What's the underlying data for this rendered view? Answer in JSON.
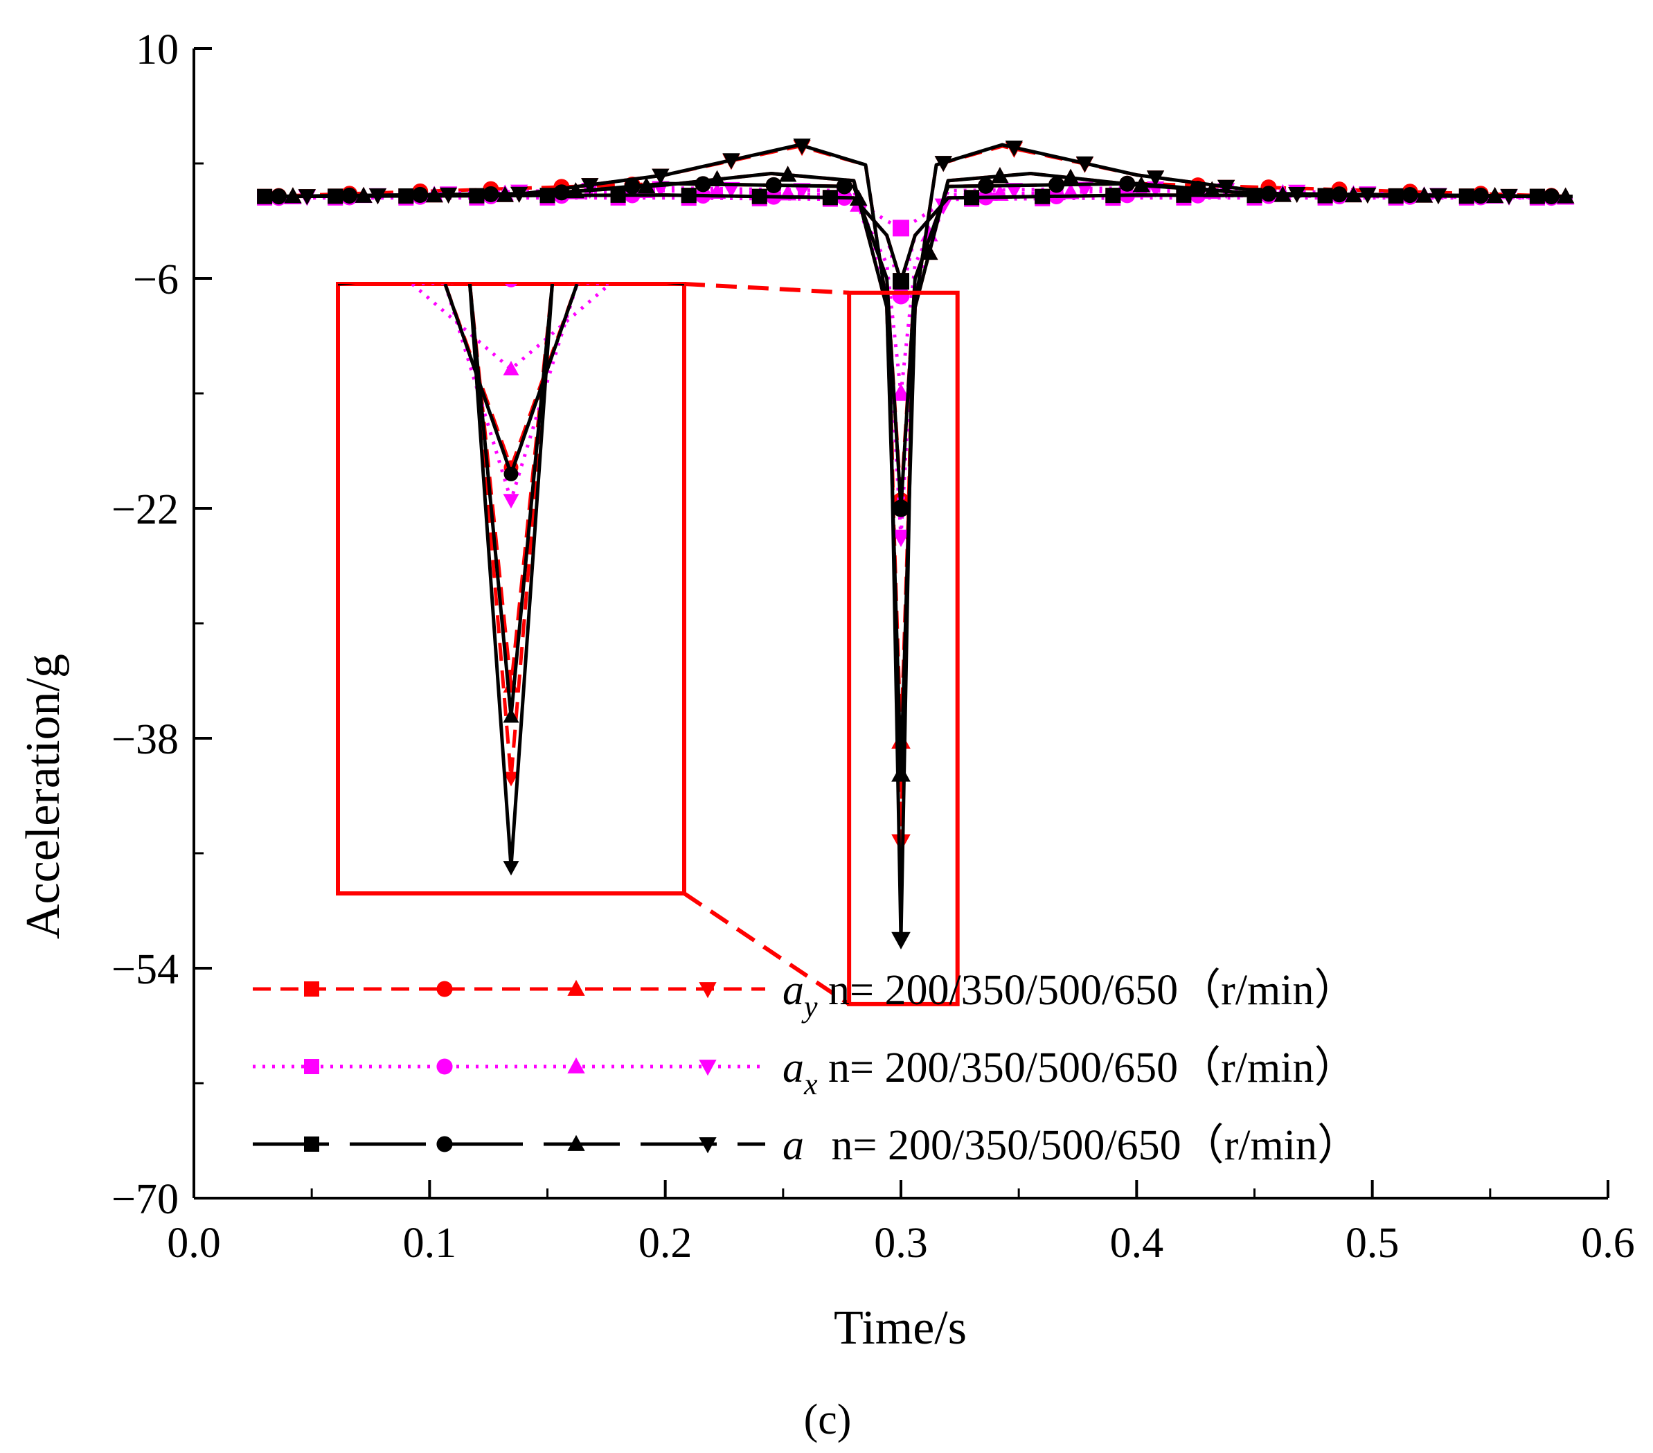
{
  "chart_data": {
    "type": "line",
    "panel_label": "(c)",
    "xlabel": "Time/s",
    "ylabel": "Acceleration/g",
    "xlim": [
      0.0,
      0.6
    ],
    "ylim": [
      -70,
      10
    ],
    "xticks": [
      0.0,
      0.1,
      0.2,
      0.3,
      0.4,
      0.5,
      0.6
    ],
    "xtick_labels": [
      "0.0",
      "0.1",
      "0.2",
      "0.3",
      "0.4",
      "0.5",
      "0.6"
    ],
    "yticks": [
      10,
      -6,
      -22,
      -38,
      -54,
      -70
    ],
    "ytick_labels": [
      "10",
      "−6",
      "−22",
      "−38",
      "−54",
      "−70"
    ],
    "grid": false,
    "legend": {
      "placement": "bottom-left",
      "entries": [
        {
          "symbol": "a",
          "subscript": "y",
          "label": " n= 200/350/500/650（r/min）",
          "style": "dashed",
          "color": "#ff0000"
        },
        {
          "symbol": "a",
          "subscript": "x",
          "label": " n= 200/350/500/650（r/min）",
          "style": "dotted",
          "color": "#ff00ff"
        },
        {
          "symbol": "a",
          "subscript": "",
          "label": " n= 200/350/500/650（r/min）",
          "style": "solid",
          "color": "#000000"
        }
      ]
    },
    "inset": {
      "description": "zoomed view of the trough near t = 0.3 s",
      "source_x_range": [
        0.278,
        0.324
      ],
      "source_y_range": [
        -56.5,
        -7.0
      ],
      "box_color": "#ff0000"
    },
    "series": [
      {
        "group": "ay",
        "n": 200,
        "marker": "square",
        "color": "#ff0000",
        "style": "dashed",
        "x": [
          0.03,
          0.2,
          0.28,
          0.294,
          0.3,
          0.306,
          0.32,
          0.4,
          0.585
        ],
        "y": [
          -0.3,
          -0.2,
          -0.4,
          -3.0,
          -6.2,
          -3.0,
          -0.4,
          -0.2,
          -0.3
        ]
      },
      {
        "group": "ay",
        "n": 350,
        "marker": "circle",
        "color": "#ff0000",
        "style": "dashed",
        "x": [
          0.03,
          0.2,
          0.28,
          0.294,
          0.3,
          0.306,
          0.32,
          0.4,
          0.585
        ],
        "y": [
          -0.3,
          0.6,
          0.4,
          -6.0,
          -21.5,
          -6.0,
          0.4,
          0.6,
          -0.3
        ]
      },
      {
        "group": "ay",
        "n": 500,
        "marker": "triangle-up",
        "color": "#ff0000",
        "style": "dashed",
        "x": [
          0.03,
          0.14,
          0.2,
          0.245,
          0.28,
          0.294,
          0.3,
          0.306,
          0.32,
          0.355,
          0.4,
          0.46,
          0.585
        ],
        "y": [
          -0.3,
          -0.2,
          0.5,
          1.3,
          0.8,
          -8.0,
          -38.2,
          -8.0,
          0.8,
          1.3,
          0.5,
          -0.2,
          -0.3
        ]
      },
      {
        "group": "ay",
        "n": 650,
        "marker": "triangle-down",
        "color": "#ff0000",
        "style": "dashed",
        "x": [
          0.03,
          0.14,
          0.2,
          0.257,
          0.285,
          0.295,
          0.3,
          0.305,
          0.315,
          0.343,
          0.4,
          0.46,
          0.585
        ],
        "y": [
          -0.3,
          -0.1,
          1.2,
          3.2,
          1.9,
          -9.0,
          -45.2,
          -9.0,
          1.9,
          3.2,
          1.2,
          -0.1,
          -0.3
        ]
      },
      {
        "group": "ax",
        "n": 200,
        "marker": "square",
        "color": "#ff00ff",
        "style": "dotted",
        "x": [
          0.03,
          0.2,
          0.28,
          0.294,
          0.3,
          0.306,
          0.32,
          0.4,
          0.585
        ],
        "y": [
          -0.4,
          -0.4,
          -0.5,
          -2.0,
          -2.5,
          -2.0,
          -0.5,
          -0.4,
          -0.4
        ]
      },
      {
        "group": "ax",
        "n": 350,
        "marker": "circle",
        "color": "#ff00ff",
        "style": "dotted",
        "x": [
          0.03,
          0.2,
          0.28,
          0.294,
          0.3,
          0.306,
          0.32,
          0.4,
          0.585
        ],
        "y": [
          -0.4,
          -0.2,
          -0.4,
          -3.0,
          -7.2,
          -3.0,
          -0.4,
          -0.2,
          -0.4
        ]
      },
      {
        "group": "ax",
        "n": 500,
        "marker": "triangle-up",
        "color": "#ff00ff",
        "style": "dotted",
        "x": [
          0.03,
          0.2,
          0.28,
          0.294,
          0.3,
          0.306,
          0.32,
          0.4,
          0.585
        ],
        "y": [
          -0.4,
          0.1,
          -0.2,
          -5.0,
          -14.0,
          -5.0,
          -0.2,
          0.1,
          -0.4
        ]
      },
      {
        "group": "ax",
        "n": 650,
        "marker": "triangle-down",
        "color": "#ff00ff",
        "style": "dotted",
        "x": [
          0.03,
          0.2,
          0.28,
          0.294,
          0.3,
          0.306,
          0.32,
          0.4,
          0.585
        ],
        "y": [
          -0.4,
          0.3,
          0.1,
          -7.0,
          -24.0,
          -7.0,
          0.1,
          0.3,
          -0.4
        ]
      },
      {
        "group": "a",
        "n": 200,
        "marker": "square",
        "color": "#000000",
        "style": "solid",
        "x": [
          0.03,
          0.2,
          0.28,
          0.294,
          0.3,
          0.306,
          0.32,
          0.4,
          0.585
        ],
        "y": [
          -0.3,
          -0.2,
          -0.4,
          -3.0,
          -6.2,
          -3.0,
          -0.4,
          -0.2,
          -0.3
        ]
      },
      {
        "group": "a",
        "n": 350,
        "marker": "circle",
        "color": "#000000",
        "style": "solid",
        "x": [
          0.03,
          0.15,
          0.2,
          0.28,
          0.294,
          0.3,
          0.306,
          0.32,
          0.4,
          0.45,
          0.585
        ],
        "y": [
          -0.3,
          -0.1,
          0.6,
          0.4,
          -6.0,
          -22.0,
          -6.0,
          0.4,
          0.6,
          -0.1,
          -0.3
        ]
      },
      {
        "group": "a",
        "n": 500,
        "marker": "triangle-up",
        "color": "#000000",
        "style": "solid",
        "x": [
          0.03,
          0.14,
          0.2,
          0.245,
          0.28,
          0.294,
          0.3,
          0.306,
          0.32,
          0.355,
          0.4,
          0.46,
          0.585
        ],
        "y": [
          -0.3,
          -0.2,
          0.5,
          1.3,
          0.8,
          -8.0,
          -40.5,
          -8.0,
          0.8,
          1.3,
          0.5,
          -0.2,
          -0.3
        ]
      },
      {
        "group": "a",
        "n": 650,
        "marker": "triangle-down",
        "color": "#000000",
        "style": "solid",
        "x": [
          0.03,
          0.14,
          0.2,
          0.257,
          0.285,
          0.295,
          0.3,
          0.305,
          0.315,
          0.343,
          0.4,
          0.46,
          0.585
        ],
        "y": [
          -0.3,
          -0.1,
          1.2,
          3.3,
          1.9,
          -9.0,
          -52.0,
          -9.0,
          1.9,
          3.3,
          1.2,
          -0.1,
          -0.3
        ]
      }
    ]
  }
}
